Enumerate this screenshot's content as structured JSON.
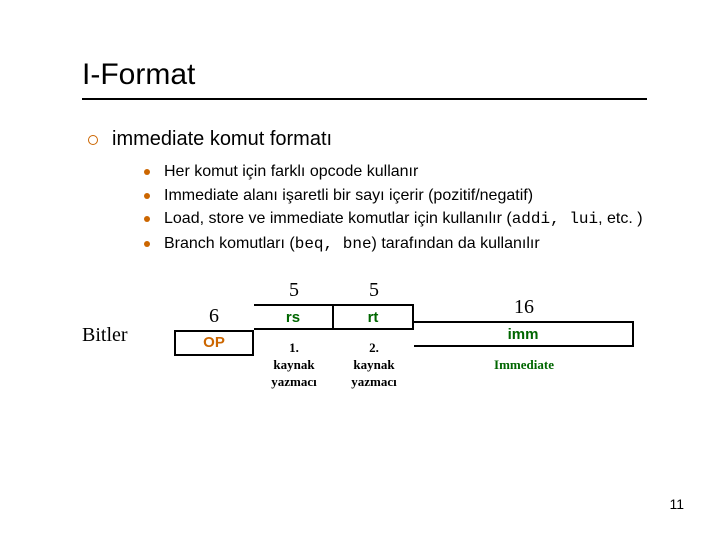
{
  "title": "I-Format",
  "main_bullet": "immediate komut formatı",
  "sub_items": [
    "Her komut için farklı opcode kullanır",
    "Immediate alanı işaretli bir sayı içerir (pozitif/negatif)"
  ],
  "sub_item_3_prefix": "Load, store ve immediate komutlar için kullanılır (",
  "sub_item_3_code1": "addi",
  "sub_item_3_sep": ", ",
  "sub_item_3_code2": "lui",
  "sub_item_3_suffix": ", etc. )",
  "sub_item_4_prefix": "Branch komutları (",
  "sub_item_4_code1": "beq",
  "sub_item_4_sep": ", ",
  "sub_item_4_code2": "bne",
  "sub_item_4_suffix": ") tarafından da kullanılır",
  "bitler_label": "Bitler",
  "fields": {
    "op": {
      "bits": "6",
      "label": "OP",
      "desc": ""
    },
    "rs": {
      "bits": "5",
      "label": "rs",
      "desc": "1.\nkaynak\nyazmacı"
    },
    "rt": {
      "bits": "5",
      "label": "rt",
      "desc": "2.\nkaynak\nyazmacı"
    },
    "imm": {
      "bits": "16",
      "label": "imm",
      "desc": "Immediate"
    }
  },
  "slide_number": "11",
  "colors": {
    "accent": "#cc6600",
    "green": "#006600",
    "text": "#000000",
    "bg": "#ffffff"
  }
}
